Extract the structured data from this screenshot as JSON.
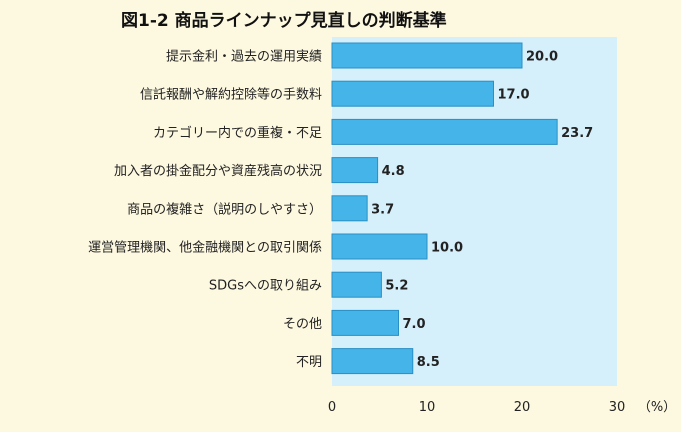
{
  "chart_data": {
    "type": "bar",
    "orientation": "horizontal",
    "title": "図1-2  商品ラインナップ見直しの判断基準",
    "unit": "（%）",
    "categories": [
      "提示金利・過去の運用実績",
      "信託報酬や解約控除等の手数料",
      "カテゴリー内での重複・不足",
      "加入者の掛金配分や資産残高の状況",
      "商品の複雑さ（説明のしやすさ）",
      "運営管理機関、他金融機関との取引関係",
      "SDGsへの取り組み",
      "その他",
      "不明"
    ],
    "values": [
      20.0,
      17.0,
      23.7,
      4.8,
      3.7,
      10.0,
      5.2,
      7.0,
      8.5
    ],
    "value_labels": [
      "20.0",
      "17.0",
      "23.7",
      "4.8",
      "3.7",
      "10.0",
      "5.2",
      "7.0",
      "8.5"
    ],
    "xlim": [
      0,
      30
    ],
    "xticks": [
      "0",
      "10",
      "20",
      "30"
    ],
    "grid": false,
    "colors": {
      "bar": "#45b4e8",
      "bar_border": "#2a8fc4",
      "plot_bg": "#d5effb",
      "page_bg": "#fdf8e0"
    }
  }
}
